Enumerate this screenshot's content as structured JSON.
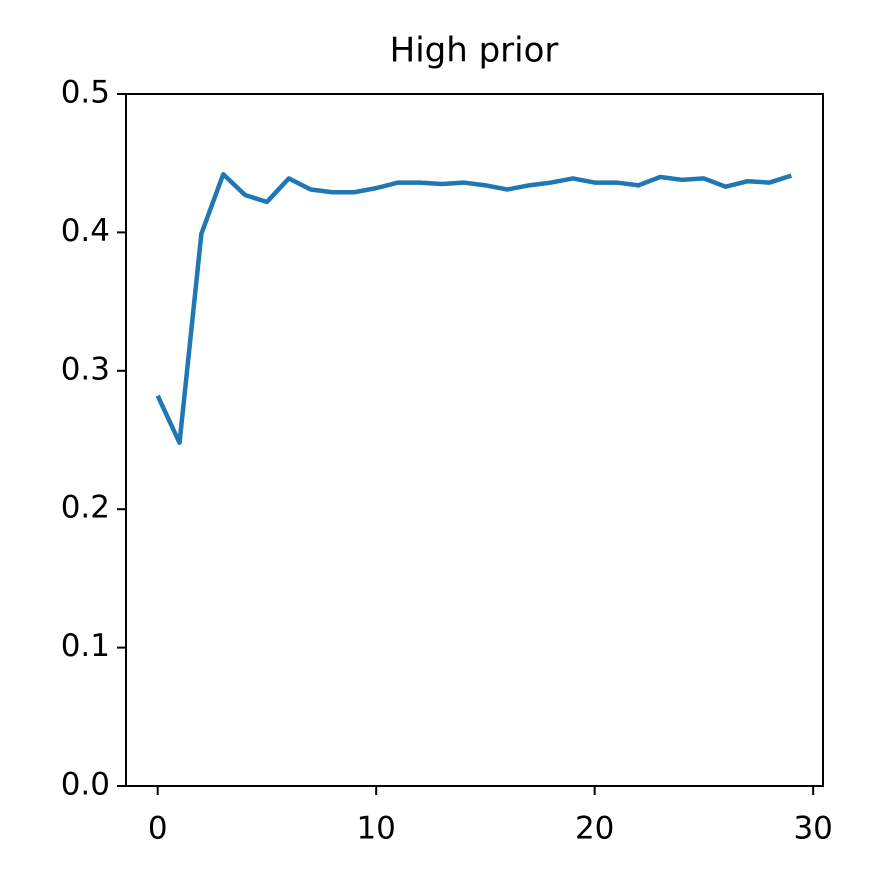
{
  "chart_data": {
    "type": "line",
    "title": "High prior",
    "x": [
      0,
      1,
      2,
      3,
      4,
      5,
      6,
      7,
      8,
      9,
      10,
      11,
      12,
      13,
      14,
      15,
      16,
      17,
      18,
      19,
      20,
      21,
      22,
      23,
      24,
      25,
      26,
      27,
      28,
      29
    ],
    "values": [
      0.282,
      0.248,
      0.399,
      0.442,
      0.427,
      0.422,
      0.439,
      0.431,
      0.429,
      0.429,
      0.432,
      0.436,
      0.436,
      0.435,
      0.436,
      0.434,
      0.431,
      0.434,
      0.436,
      0.439,
      0.436,
      0.436,
      0.434,
      0.44,
      0.438,
      0.439,
      0.433,
      0.437,
      0.436,
      0.441
    ],
    "color": "#1f77b4",
    "xlim": [
      -1.45,
      30.45
    ],
    "xticks": [
      0,
      10,
      20,
      30
    ],
    "ylim": [
      0,
      0.5
    ],
    "yticks": [
      {
        "value": 0,
        "label": "0.0"
      },
      0.1,
      0.2,
      0.3,
      0.4,
      0.5
    ]
  }
}
